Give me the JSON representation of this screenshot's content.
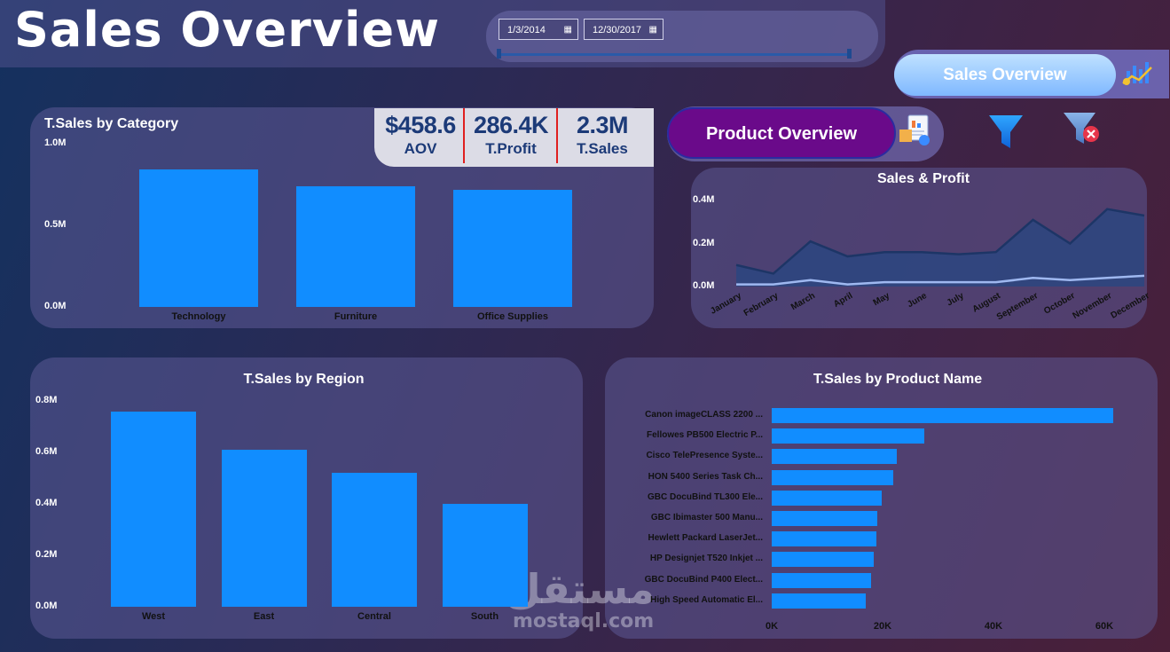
{
  "header": {
    "title": "Sales Overview",
    "start_date": "1/3/2014",
    "end_date": "12/30/2017"
  },
  "nav": {
    "sales_label": "Sales Overview",
    "product_label": "Product Overview"
  },
  "kpis": [
    {
      "value": "$458.6",
      "label": "AOV"
    },
    {
      "value": "286.4K",
      "label": "T.Profit"
    },
    {
      "value": "2.3M",
      "label": "T.Sales"
    }
  ],
  "chart_data": [
    {
      "type": "bar",
      "title": "T.Sales by Category",
      "categories": [
        "Technology",
        "Furniture",
        "Office Supplies"
      ],
      "values": [
        0.84,
        0.74,
        0.72
      ],
      "units": "M",
      "y_ticks": [
        "1.0M",
        "0.5M",
        "0.0M"
      ],
      "ylim": [
        0,
        1.0
      ]
    },
    {
      "type": "area",
      "title": "Sales & Profit",
      "categories": [
        "January",
        "February",
        "March",
        "April",
        "May",
        "June",
        "July",
        "August",
        "September",
        "October",
        "November",
        "December"
      ],
      "series": [
        {
          "name": "Sales",
          "values": [
            0.1,
            0.06,
            0.21,
            0.14,
            0.16,
            0.16,
            0.15,
            0.16,
            0.31,
            0.2,
            0.36,
            0.33
          ]
        },
        {
          "name": "Profit",
          "values": [
            0.01,
            0.01,
            0.03,
            0.01,
            0.02,
            0.02,
            0.02,
            0.02,
            0.04,
            0.03,
            0.04,
            0.05
          ]
        }
      ],
      "y_ticks": [
        "0.4M",
        "0.2M",
        "0.0M"
      ],
      "ylim": [
        0,
        0.4
      ]
    },
    {
      "type": "bar",
      "title": "T.Sales by Region",
      "categories": [
        "West",
        "East",
        "Central",
        "South"
      ],
      "values": [
        0.76,
        0.61,
        0.52,
        0.4
      ],
      "units": "M",
      "y_ticks": [
        "0.8M",
        "0.6M",
        "0.4M",
        "0.2M",
        "0.0M"
      ],
      "ylim": [
        0,
        0.8
      ]
    },
    {
      "type": "bar",
      "orientation": "horizontal",
      "title": "T.Sales by Product Name",
      "categories": [
        "Canon imageCLASS 2200 ...",
        "Fellowes PB500 Electric P...",
        "Cisco TelePresence Syste...",
        "HON 5400 Series Task Ch...",
        "GBC DocuBind TL300 Ele...",
        "GBC Ibimaster 500 Manu...",
        "Hewlett Packard LaserJet...",
        "HP Designjet T520 Inkjet ...",
        "GBC DocuBind P400 Elect...",
        "High Speed Automatic El..."
      ],
      "values": [
        61.6,
        27.5,
        22.6,
        21.9,
        19.8,
        19.0,
        18.8,
        18.4,
        17.9,
        17.0
      ],
      "units": "K",
      "x_ticks": [
        "0K",
        "20K",
        "40K",
        "60K"
      ],
      "xlim": [
        0,
        64
      ]
    }
  ],
  "watermark": {
    "arabic": "مستقل",
    "latin": "mostaql.com"
  },
  "colors": {
    "bar": "#118dff",
    "kpi_text": "#1c3a78",
    "accent_purple": "#6a0a8a"
  }
}
